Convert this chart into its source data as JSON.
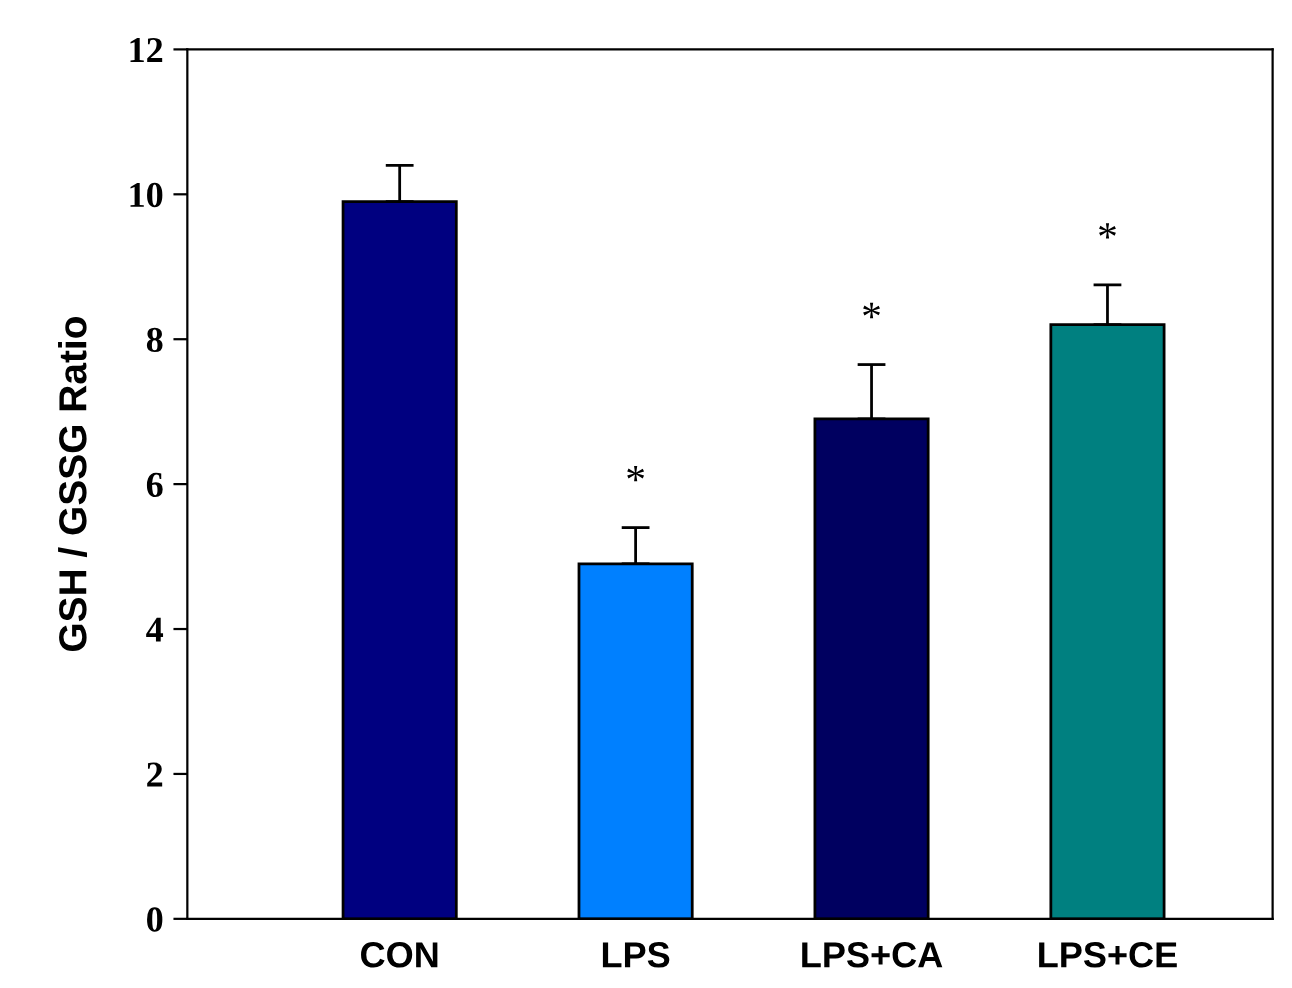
{
  "chart_data": {
    "type": "bar",
    "ylabel": "GSH / GSSG Ratio",
    "categories": [
      "CON",
      "LPS",
      "LPS+CA",
      "LPS+CE"
    ],
    "values": [
      9.9,
      4.9,
      6.9,
      8.2
    ],
    "colors": [
      "#000080",
      "#0080ff",
      "#000060",
      "#008080"
    ],
    "errors": [
      [
        9.9,
        10.4
      ],
      [
        4.9,
        5.4
      ],
      [
        6.9,
        7.65
      ],
      [
        8.2,
        8.75
      ]
    ],
    "value_labels": [
      null,
      "*",
      "*",
      "*"
    ],
    "ylim": [
      0,
      12
    ],
    "yticks": [
      0,
      2,
      4,
      6,
      8,
      10,
      12
    ],
    "grid": false,
    "legend": false
  }
}
